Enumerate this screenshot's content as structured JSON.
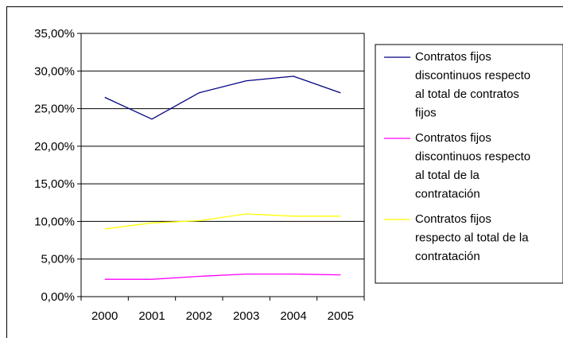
{
  "chart_data": {
    "type": "line",
    "title": "",
    "xlabel": "",
    "ylabel": "",
    "categories": [
      "2000",
      "2001",
      "2002",
      "2003",
      "2004",
      "2005"
    ],
    "ylim": [
      0,
      0.35
    ],
    "yticks": [
      0,
      0.05,
      0.1,
      0.15,
      0.2,
      0.25,
      0.3,
      0.35
    ],
    "ytick_labels": [
      "0,00%",
      "5,00%",
      "10,00%",
      "15,00%",
      "20,00%",
      "25,00%",
      "30,00%",
      "35,00%"
    ],
    "grid": "horizontal",
    "legend_position": "right",
    "series": [
      {
        "name": "Contratos fijos discontinuos respecto al total de contratos fijos",
        "legend_lines": [
          "Contratos fijos",
          "discontinuos respecto",
          "al total de contratos",
          "fijos"
        ],
        "color": "#000080",
        "values": [
          0.265,
          0.236,
          0.271,
          0.287,
          0.293,
          0.271
        ]
      },
      {
        "name": "Contratos fijos discontinuos respecto al total de la contratación",
        "legend_lines": [
          "Contratos fijos",
          "discontinuos respecto",
          "al total de la",
          "contratación"
        ],
        "color": "#ff00ff",
        "values": [
          0.023,
          0.023,
          0.027,
          0.03,
          0.03,
          0.029
        ]
      },
      {
        "name": "Contratos fijos respecto al total de la contratación",
        "legend_lines": [
          "Contratos fijos",
          "respecto al total de la",
          "contratación"
        ],
        "color": "#ffff00",
        "values": [
          0.09,
          0.098,
          0.101,
          0.11,
          0.107,
          0.107
        ]
      }
    ]
  }
}
